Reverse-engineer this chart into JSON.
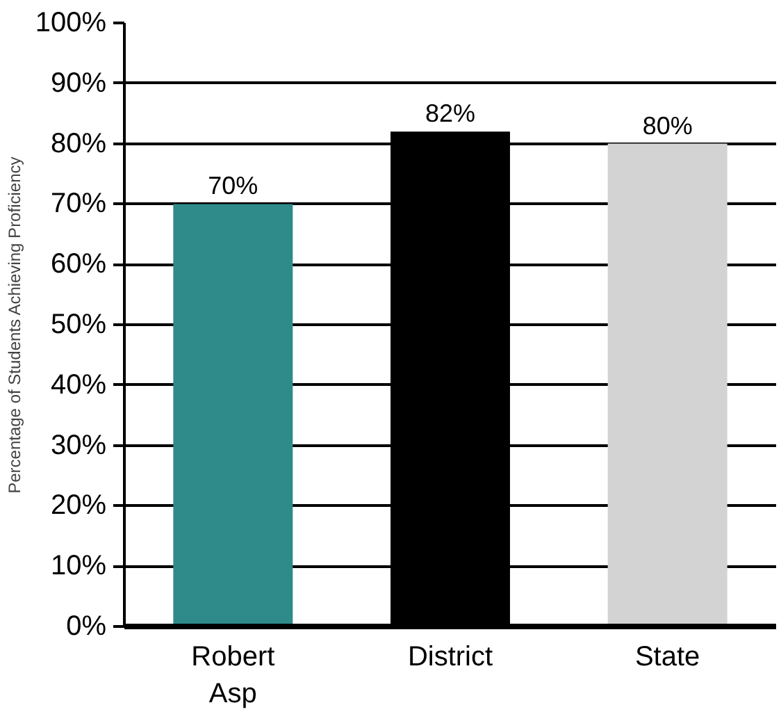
{
  "chart_data": {
    "type": "bar",
    "ylabel": "Percentage of Students Achieving Proficiency",
    "categories": [
      "Robert Asp",
      "District",
      "State"
    ],
    "values": [
      70,
      82,
      80
    ],
    "colors": [
      "#2e8b8a",
      "#000000",
      "#d3d3d3"
    ],
    "ylim": [
      0,
      100
    ],
    "yticks": [
      {
        "value": 0,
        "label": "0%"
      },
      {
        "value": 10,
        "label": "10%"
      },
      {
        "value": 20,
        "label": "20%"
      },
      {
        "value": 30,
        "label": "30%"
      },
      {
        "value": 40,
        "label": "40%"
      },
      {
        "value": 50,
        "label": "50%"
      },
      {
        "value": 60,
        "label": "60%"
      },
      {
        "value": 70,
        "label": "70%"
      },
      {
        "value": 80,
        "label": "80%"
      },
      {
        "value": 90,
        "label": "90%"
      },
      {
        "value": 100,
        "label": "100%"
      }
    ],
    "value_labels": [
      "70%",
      "82%",
      "80%"
    ],
    "grid": "y"
  }
}
